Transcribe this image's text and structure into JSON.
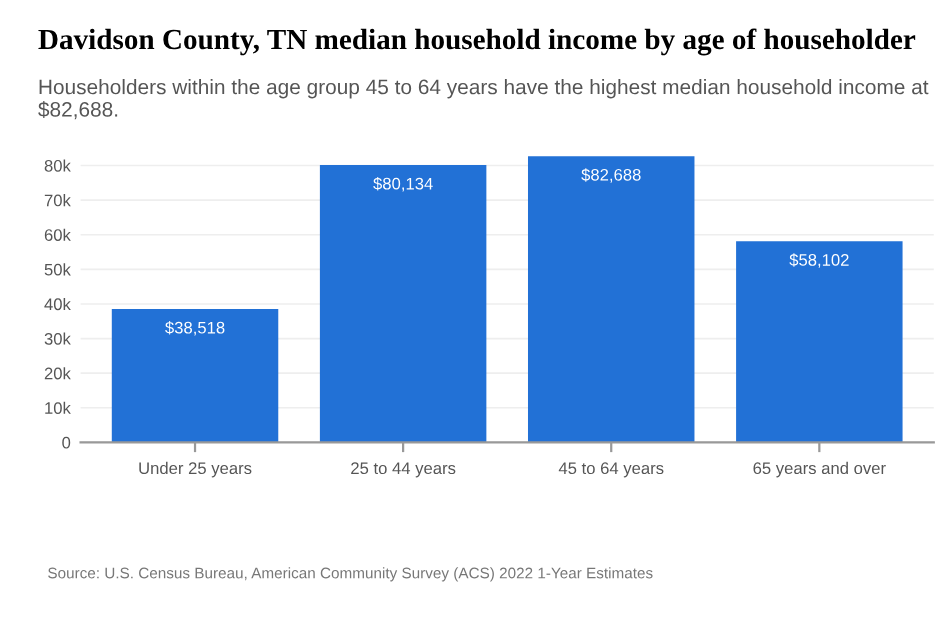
{
  "chart_data": {
    "type": "bar",
    "title": "Davidson County, TN median household income by age of householder",
    "subtitle": "Householders within the age group 45 to 64 years have the highest median household income at $82,688.",
    "categories": [
      "Under 25 years",
      "25 to 44 years",
      "45 to 64 years",
      "65 years and over"
    ],
    "values": [
      38518,
      80134,
      82688,
      58102
    ],
    "value_labels": [
      "$38,518",
      "$80,134",
      "$82,688",
      "$58,102"
    ],
    "color": "#2271d6",
    "ylim": [
      0,
      84000
    ],
    "yticks": [
      0,
      {
        "value": 10000,
        "label": "10k"
      },
      {
        "value": 20000,
        "label": "20k"
      },
      {
        "value": 30000,
        "label": "30k"
      },
      {
        "value": 40000,
        "label": "40k"
      },
      {
        "value": 50000,
        "label": "50k"
      },
      {
        "value": 60000,
        "label": "60k"
      },
      {
        "value": 70000,
        "label": "70k"
      },
      {
        "value": 80000,
        "label": "80k"
      }
    ],
    "grid": "y",
    "annotations": [
      "Source: U.S. Census Bureau, American Community Survey (ACS) 2022 1-Year Estimates"
    ]
  }
}
